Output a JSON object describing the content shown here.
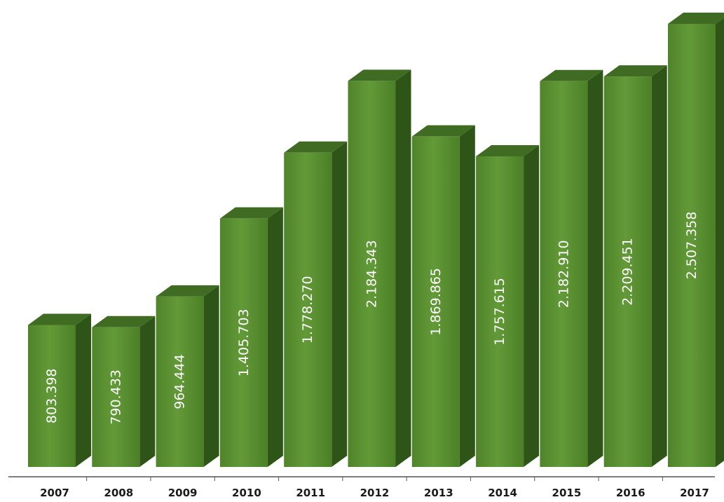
{
  "chart_data": {
    "type": "bar",
    "title": "",
    "xlabel": "",
    "ylabel": "",
    "categories": [
      "2007",
      "2008",
      "2009",
      "2010",
      "2011",
      "2012",
      "2013",
      "2014",
      "2015",
      "2016",
      "2017"
    ],
    "values": [
      803398,
      790433,
      964444,
      1405703,
      1778270,
      2184343,
      1869865,
      1757615,
      2182910,
      2209451,
      2507358
    ],
    "value_labels": [
      "803.398",
      "790.433",
      "964.444",
      "1.405.703",
      "1.778.270",
      "2.184.343",
      "1.869.865",
      "1.757.615",
      "2.182.910",
      "2.209.451",
      "2.507.358"
    ],
    "ylim": [
      0,
      2600000
    ],
    "grid": false,
    "legend": "none",
    "style": "3d-column",
    "colors": {
      "bar_front": "#5a8f32",
      "bar_top": "#3f6b22",
      "bar_side": "#2f5418",
      "axis": "#555555"
    }
  }
}
